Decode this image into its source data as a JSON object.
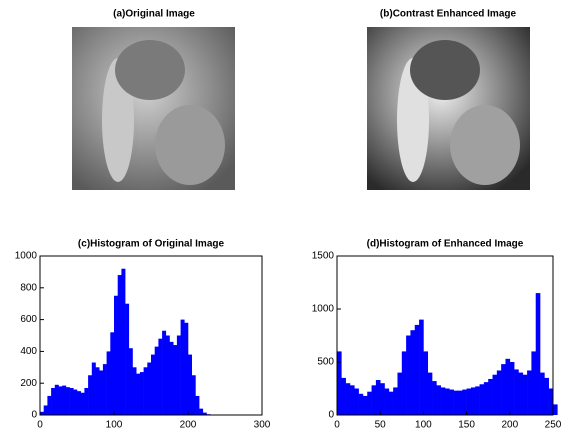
{
  "images": [
    {
      "title": "(a)Original Image"
    },
    {
      "title": "(b)Contrast Enhanced Image"
    }
  ],
  "chart_data": [
    {
      "type": "histogram",
      "title": "(c)Histogram of Original Image",
      "color": "#0000ff",
      "bins": [
        0,
        5,
        10,
        15,
        20,
        25,
        30,
        35,
        40,
        45,
        50,
        55,
        60,
        65,
        70,
        75,
        80,
        85,
        90,
        95,
        100,
        105,
        110,
        115,
        120,
        125,
        130,
        135,
        140,
        145,
        150,
        155,
        160,
        165,
        170,
        175,
        180,
        185,
        190,
        195,
        200,
        205,
        210,
        215,
        220,
        225,
        230
      ],
      "values": [
        20,
        60,
        120,
        170,
        190,
        180,
        185,
        175,
        170,
        160,
        150,
        140,
        170,
        250,
        330,
        300,
        280,
        320,
        400,
        520,
        750,
        880,
        920,
        700,
        420,
        300,
        260,
        270,
        300,
        330,
        380,
        430,
        480,
        530,
        500,
        460,
        440,
        500,
        600,
        580,
        380,
        250,
        120,
        40,
        15,
        5
      ],
      "xlim": [
        0,
        300
      ],
      "xticks": [
        0,
        100,
        200,
        300
      ],
      "ylim": [
        0,
        1000
      ],
      "yticks": [
        0,
        200,
        400,
        600,
        800,
        1000
      ]
    },
    {
      "type": "histogram",
      "title": "(d)Histogram of Enhanced Image",
      "color": "#0000ff",
      "bins": [
        0,
        5,
        10,
        15,
        20,
        25,
        30,
        35,
        40,
        45,
        50,
        55,
        60,
        65,
        70,
        75,
        80,
        85,
        90,
        95,
        100,
        105,
        110,
        115,
        120,
        125,
        130,
        135,
        140,
        145,
        150,
        155,
        160,
        165,
        170,
        175,
        180,
        185,
        190,
        195,
        200,
        205,
        210,
        215,
        220,
        225,
        230,
        235,
        240,
        245,
        250,
        255
      ],
      "values": [
        600,
        350,
        300,
        280,
        250,
        200,
        180,
        220,
        280,
        330,
        300,
        250,
        220,
        260,
        400,
        600,
        750,
        800,
        850,
        900,
        600,
        400,
        320,
        280,
        260,
        250,
        240,
        230,
        230,
        240,
        250,
        260,
        270,
        290,
        310,
        340,
        380,
        420,
        480,
        530,
        500,
        430,
        400,
        380,
        420,
        600,
        1150,
        400,
        350,
        250,
        100
      ],
      "xlim": [
        0,
        250
      ],
      "xticks": [
        0,
        50,
        100,
        150,
        200,
        250
      ],
      "ylim": [
        0,
        1500
      ],
      "yticks": [
        0,
        500,
        1000,
        1500
      ]
    }
  ]
}
